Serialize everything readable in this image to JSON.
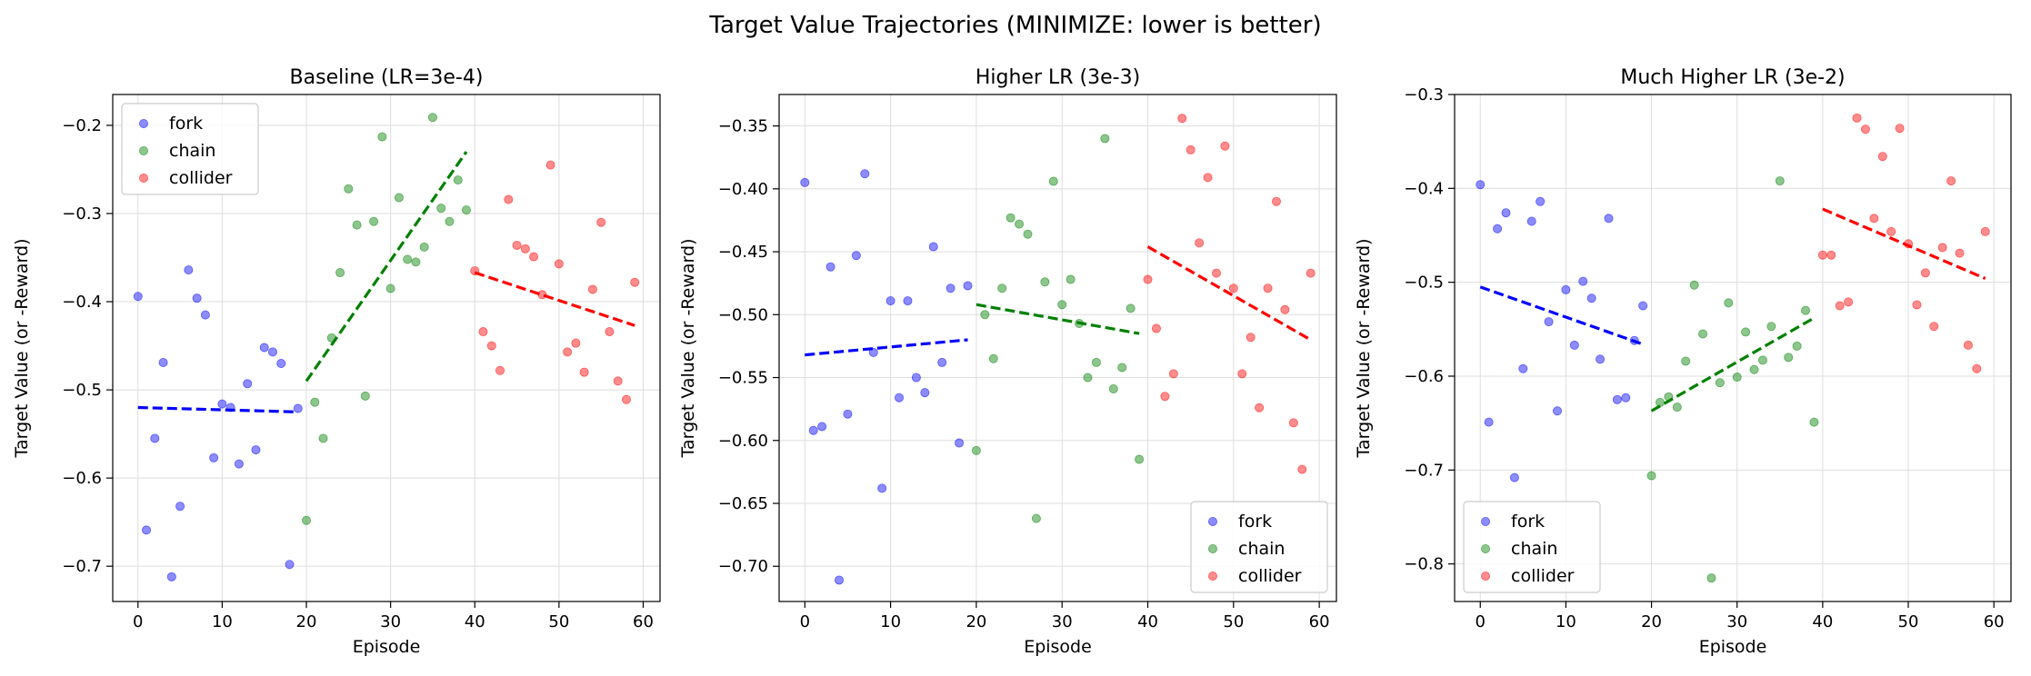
{
  "figure": {
    "suptitle": "Target Value Trajectories (MINIMIZE: lower is better)"
  },
  "chart_data": [
    {
      "type": "scatter",
      "title": "Baseline (LR=3e-4)",
      "xlabel": "Episode",
      "ylabel": "Target Value (or -Reward)",
      "xlim": [
        -3,
        62
      ],
      "ylim": [
        -0.74,
        -0.165
      ],
      "xticks": [
        0,
        10,
        20,
        30,
        40,
        50,
        60
      ],
      "yticks": [
        -0.7,
        -0.6,
        -0.5,
        -0.4,
        -0.3,
        -0.2
      ],
      "ytick_labels": [
        "−0.7",
        "−0.6",
        "−0.5",
        "−0.4",
        "−0.3",
        "−0.2"
      ],
      "grid": true,
      "legend_position": "upper-left",
      "series": [
        {
          "name": "fork",
          "color": "#0000ff",
          "x": [
            0,
            1,
            2,
            3,
            4,
            5,
            6,
            7,
            8,
            9,
            10,
            11,
            12,
            13,
            14,
            15,
            16,
            17,
            18,
            19
          ],
          "y": [
            -0.394,
            -0.659,
            -0.555,
            -0.469,
            -0.712,
            -0.632,
            -0.364,
            -0.396,
            -0.415,
            -0.577,
            -0.516,
            -0.52,
            -0.584,
            -0.493,
            -0.568,
            -0.452,
            -0.457,
            -0.47,
            -0.698,
            -0.521
          ],
          "trend": [
            [
              0,
              -0.52
            ],
            [
              19,
              -0.525
            ]
          ]
        },
        {
          "name": "chain",
          "color": "#008000",
          "x": [
            20,
            21,
            22,
            23,
            24,
            25,
            26,
            27,
            28,
            29,
            30,
            31,
            32,
            33,
            34,
            35,
            36,
            37,
            38,
            39
          ],
          "y": [
            -0.648,
            -0.514,
            -0.555,
            -0.441,
            -0.367,
            -0.272,
            -0.313,
            -0.507,
            -0.309,
            -0.213,
            -0.385,
            -0.282,
            -0.352,
            -0.355,
            -0.338,
            -0.191,
            -0.294,
            -0.309,
            -0.262,
            -0.296
          ],
          "trend": [
            [
              20,
              -0.49
            ],
            [
              39,
              -0.23
            ]
          ]
        },
        {
          "name": "collider",
          "color": "#ff0000",
          "x": [
            40,
            41,
            42,
            43,
            44,
            45,
            46,
            47,
            48,
            49,
            50,
            51,
            52,
            53,
            54,
            55,
            56,
            57,
            58,
            59
          ],
          "y": [
            -0.365,
            -0.434,
            -0.45,
            -0.478,
            -0.284,
            -0.336,
            -0.34,
            -0.349,
            -0.392,
            -0.245,
            -0.357,
            -0.457,
            -0.447,
            -0.48,
            -0.386,
            -0.31,
            -0.434,
            -0.49,
            -0.511,
            -0.378
          ],
          "trend": [
            [
              40,
              -0.367
            ],
            [
              59,
              -0.427
            ]
          ]
        }
      ]
    },
    {
      "type": "scatter",
      "title": "Higher LR (3e-3)",
      "xlabel": "Episode",
      "ylabel": "Target Value (or -Reward)",
      "xlim": [
        -3,
        62
      ],
      "ylim": [
        -0.728,
        -0.325
      ],
      "xticks": [
        0,
        10,
        20,
        30,
        40,
        50,
        60
      ],
      "yticks": [
        -0.7,
        -0.65,
        -0.6,
        -0.55,
        -0.5,
        -0.45,
        -0.4,
        -0.35
      ],
      "ytick_labels": [
        "−0.70",
        "−0.65",
        "−0.60",
        "−0.55",
        "−0.50",
        "−0.45",
        "−0.40",
        "−0.35"
      ],
      "grid": true,
      "legend_position": "lower-right",
      "series": [
        {
          "name": "fork",
          "color": "#0000ff",
          "x": [
            0,
            1,
            2,
            3,
            4,
            5,
            6,
            7,
            8,
            9,
            10,
            11,
            12,
            13,
            14,
            15,
            16,
            17,
            18,
            19
          ],
          "y": [
            -0.395,
            -0.592,
            -0.589,
            -0.462,
            -0.711,
            -0.579,
            -0.453,
            -0.388,
            -0.53,
            -0.638,
            -0.489,
            -0.566,
            -0.489,
            -0.55,
            -0.562,
            -0.446,
            -0.538,
            -0.479,
            -0.602,
            -0.477
          ],
          "trend": [
            [
              0,
              -0.532
            ],
            [
              19,
              -0.52
            ]
          ]
        },
        {
          "name": "chain",
          "color": "#008000",
          "x": [
            20,
            21,
            22,
            23,
            24,
            25,
            26,
            27,
            28,
            29,
            30,
            31,
            32,
            33,
            34,
            35,
            36,
            37,
            38,
            39
          ],
          "y": [
            -0.608,
            -0.5,
            -0.535,
            -0.479,
            -0.423,
            -0.428,
            -0.436,
            -0.662,
            -0.474,
            -0.394,
            -0.492,
            -0.472,
            -0.507,
            -0.55,
            -0.538,
            -0.36,
            -0.559,
            -0.542,
            -0.495,
            -0.615
          ],
          "trend": [
            [
              20,
              -0.492
            ],
            [
              39,
              -0.515
            ]
          ]
        },
        {
          "name": "collider",
          "color": "#ff0000",
          "x": [
            40,
            41,
            42,
            43,
            44,
            45,
            46,
            47,
            48,
            49,
            50,
            51,
            52,
            53,
            54,
            55,
            56,
            57,
            58,
            59
          ],
          "y": [
            -0.472,
            -0.511,
            -0.565,
            -0.547,
            -0.344,
            -0.369,
            -0.443,
            -0.391,
            -0.467,
            -0.366,
            -0.479,
            -0.547,
            -0.518,
            -0.574,
            -0.479,
            -0.41,
            -0.496,
            -0.586,
            -0.623,
            -0.467
          ],
          "trend": [
            [
              40,
              -0.446
            ],
            [
              59,
              -0.52
            ]
          ]
        }
      ]
    },
    {
      "type": "scatter",
      "title": "Much Higher LR (3e-2)",
      "xlabel": "Episode",
      "ylabel": "Target Value (or -Reward)",
      "xlim": [
        -3,
        62
      ],
      "ylim": [
        -0.84,
        -0.3
      ],
      "xticks": [
        0,
        10,
        20,
        30,
        40,
        50,
        60
      ],
      "yticks": [
        -0.8,
        -0.7,
        -0.6,
        -0.5,
        -0.4,
        -0.3
      ],
      "ytick_labels": [
        "−0.8",
        "−0.7",
        "−0.6",
        "−0.5",
        "−0.4",
        "−0.3"
      ],
      "grid": true,
      "legend_position": "lower-left",
      "series": [
        {
          "name": "fork",
          "color": "#0000ff",
          "x": [
            0,
            1,
            2,
            3,
            4,
            5,
            6,
            7,
            8,
            9,
            10,
            11,
            12,
            13,
            14,
            15,
            16,
            17,
            18,
            19
          ],
          "y": [
            -0.396,
            -0.649,
            -0.443,
            -0.426,
            -0.708,
            -0.592,
            -0.435,
            -0.414,
            -0.542,
            -0.637,
            -0.508,
            -0.567,
            -0.499,
            -0.517,
            -0.582,
            -0.432,
            -0.625,
            -0.623,
            -0.562,
            -0.525
          ],
          "trend": [
            [
              0,
              -0.505
            ],
            [
              19,
              -0.566
            ]
          ]
        },
        {
          "name": "chain",
          "color": "#008000",
          "x": [
            20,
            21,
            22,
            23,
            24,
            25,
            26,
            27,
            28,
            29,
            30,
            31,
            32,
            33,
            34,
            35,
            36,
            37,
            38,
            39
          ],
          "y": [
            -0.706,
            -0.628,
            -0.622,
            -0.633,
            -0.584,
            -0.503,
            -0.555,
            -0.815,
            -0.607,
            -0.522,
            -0.601,
            -0.553,
            -0.593,
            -0.583,
            -0.547,
            -0.392,
            -0.58,
            -0.568,
            -0.53,
            -0.649
          ],
          "trend": [
            [
              20,
              -0.637
            ],
            [
              39,
              -0.538
            ]
          ]
        },
        {
          "name": "collider",
          "color": "#ff0000",
          "x": [
            40,
            41,
            42,
            43,
            44,
            45,
            46,
            47,
            48,
            49,
            50,
            51,
            52,
            53,
            54,
            55,
            56,
            57,
            58,
            59
          ],
          "y": [
            -0.471,
            -0.471,
            -0.525,
            -0.521,
            -0.325,
            -0.337,
            -0.432,
            -0.366,
            -0.446,
            -0.336,
            -0.459,
            -0.524,
            -0.49,
            -0.547,
            -0.463,
            -0.392,
            -0.469,
            -0.567,
            -0.592,
            -0.446
          ],
          "trend": [
            [
              40,
              -0.422
            ],
            [
              59,
              -0.496
            ]
          ]
        }
      ]
    }
  ]
}
